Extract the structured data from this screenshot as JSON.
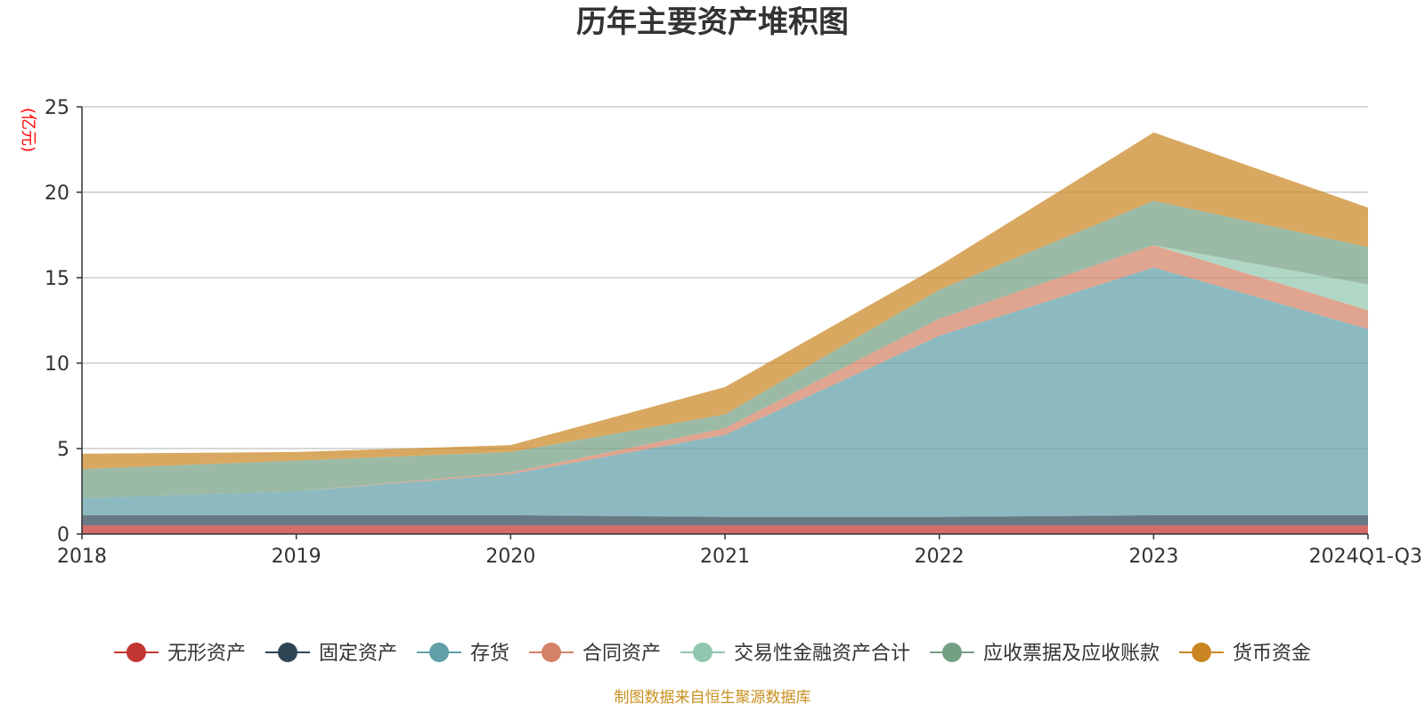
{
  "chart_data": {
    "type": "area",
    "stacked": true,
    "title": "历年主要资产堆积图",
    "unit_label": "(亿元)",
    "ylim": [
      0,
      25
    ],
    "yticks": [
      0,
      5,
      10,
      15,
      20,
      25
    ],
    "categories": [
      "2018",
      "2019",
      "2020",
      "2021",
      "2022",
      "2023",
      "2024Q1-Q3"
    ],
    "grid": true,
    "legend_position": "bottom",
    "series": [
      {
        "name": "无形资产",
        "color": "#c23531",
        "values": [
          0.5,
          0.5,
          0.5,
          0.5,
          0.5,
          0.5,
          0.5
        ]
      },
      {
        "name": "固定资产",
        "color": "#2f4554",
        "values": [
          0.6,
          0.6,
          0.6,
          0.5,
          0.5,
          0.6,
          0.6
        ]
      },
      {
        "name": "存货",
        "color": "#61a0a8",
        "values": [
          1.0,
          1.4,
          2.4,
          4.8,
          10.6,
          14.5,
          10.9
        ]
      },
      {
        "name": "合同资产",
        "color": "#d48265",
        "values": [
          0.0,
          0.0,
          0.1,
          0.4,
          1.0,
          1.3,
          1.1
        ]
      },
      {
        "name": "交易性金融资产合计",
        "color": "#91c7ae",
        "values": [
          0.0,
          0.0,
          0.0,
          0.0,
          0.0,
          0.0,
          1.5
        ]
      },
      {
        "name": "应收票据及应收账款",
        "color": "#749f83",
        "values": [
          1.7,
          1.8,
          1.2,
          0.8,
          1.7,
          2.6,
          2.2
        ]
      },
      {
        "name": "货币资金",
        "color": "#ca8622",
        "values": [
          0.9,
          0.5,
          0.4,
          1.6,
          1.4,
          4.0,
          2.3
        ]
      }
    ]
  },
  "footer": {
    "source": "制图数据来自恒生聚源数据库"
  }
}
